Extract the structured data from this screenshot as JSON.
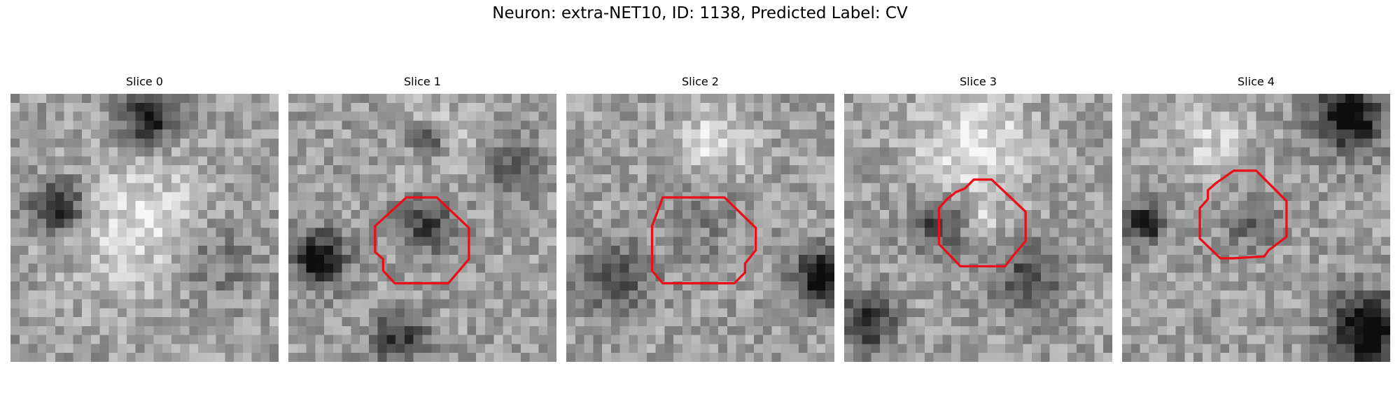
{
  "header": {
    "title": "Neuron: extra-NET10, ID: 1138, Predicted Label: CV"
  },
  "panels": [
    {
      "title": "Slice 0"
    },
    {
      "title": "Slice 1"
    },
    {
      "title": "Slice 2"
    },
    {
      "title": "Slice 3"
    },
    {
      "title": "Slice 4"
    }
  ]
}
